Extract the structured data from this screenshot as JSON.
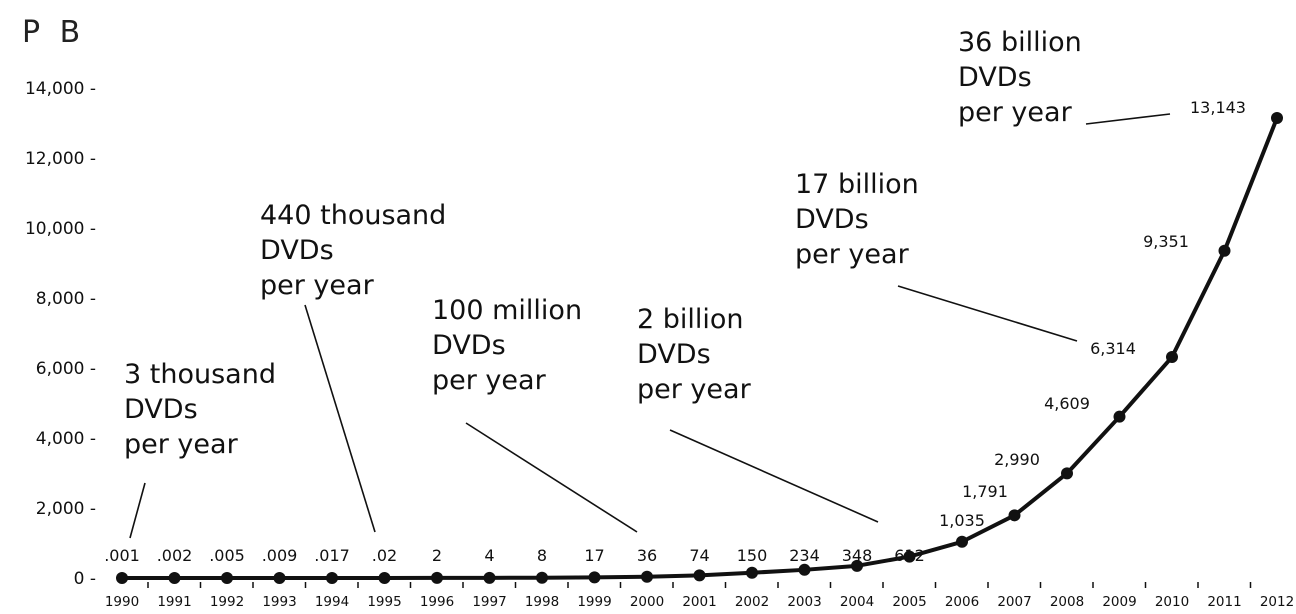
{
  "chart_data": {
    "type": "line",
    "unit_label": "P B",
    "y_ticks": [
      "14,000 -",
      "12,000 -",
      "10,000 -",
      "8,000 -",
      "6,000 -",
      "4,000 -",
      "2,000 -",
      "0 -"
    ],
    "y_tick_values": [
      14000,
      12000,
      10000,
      8000,
      6000,
      4000,
      2000,
      0
    ],
    "ylim": [
      0,
      14000
    ],
    "x": [
      "1990",
      "1991",
      "1992",
      "1993",
      "1994",
      "1995",
      "1996",
      "1997",
      "1998",
      "1999",
      "2000",
      "2001",
      "2002",
      "2003",
      "2004",
      "2005",
      "2006",
      "2007",
      "2008",
      "2009",
      "2010",
      "2011",
      "2012"
    ],
    "values": [
      0.001,
      0.002,
      0.005,
      0.009,
      0.017,
      0.02,
      2,
      4,
      8,
      17,
      36,
      74,
      150,
      234,
      348,
      612,
      1035,
      1791,
      2990,
      4609,
      6314,
      9351,
      13143
    ],
    "data_labels": [
      ".001",
      ".002",
      ".005",
      ".009",
      ".017",
      ".02",
      "2",
      "4",
      "8",
      "17",
      "36",
      "74",
      "150",
      "234",
      "348",
      "612",
      "1,035",
      "1,791",
      "2,990",
      "4,609",
      "6,314",
      "9,351",
      "13,143"
    ],
    "annotations": [
      {
        "lines": [
          "3 thousand",
          "DVDs",
          "per year"
        ],
        "points_to": "1990"
      },
      {
        "lines": [
          "440 thousand",
          "DVDs",
          "per year"
        ],
        "points_to": "1995"
      },
      {
        "lines": [
          "100 million",
          "DVDs",
          "per year"
        ],
        "points_to": "2000"
      },
      {
        "lines": [
          "2 billion",
          "DVDs",
          "per year"
        ],
        "points_to": "2005"
      },
      {
        "lines": [
          "17 billion",
          "DVDs",
          "per year"
        ],
        "points_to": "2010"
      },
      {
        "lines": [
          "36 billion",
          "DVDs",
          "per year"
        ],
        "points_to": "2012"
      }
    ],
    "grid": false,
    "colors": {
      "line": "#111111",
      "marker": "#111111"
    }
  }
}
